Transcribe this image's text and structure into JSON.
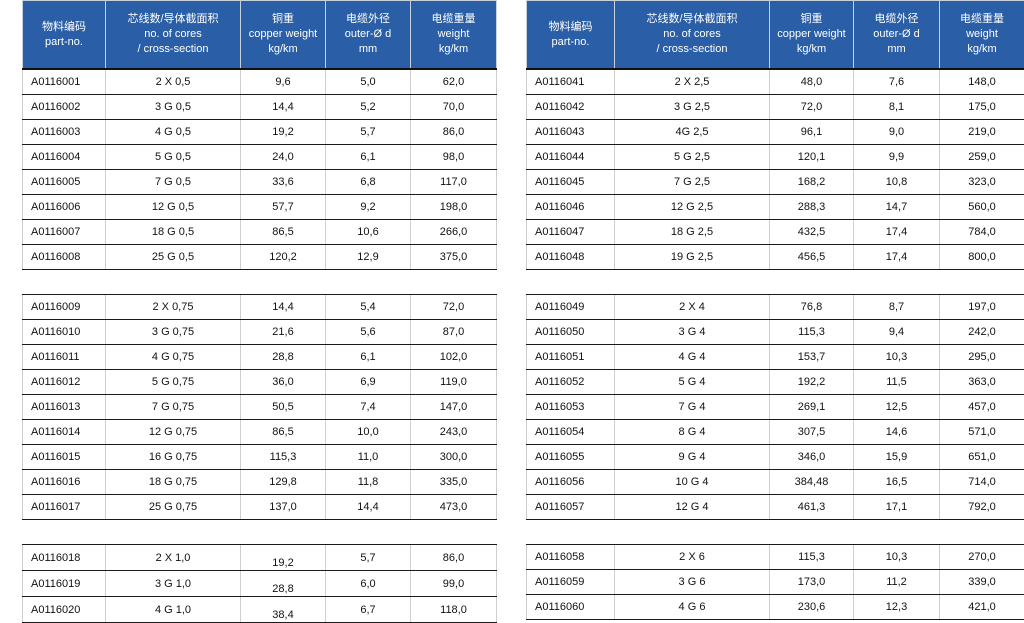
{
  "headers": [
    {
      "cn": "物料编码",
      "en1": "part-no.",
      "en2": ""
    },
    {
      "cn": "芯线数/导体截面积",
      "en1": "no. of cores",
      "en2": "/ cross-section"
    },
    {
      "cn": "铜重",
      "en1": "copper weight",
      "en2": "kg/km"
    },
    {
      "cn": "电缆外径",
      "en1": "outer-Ø d",
      "en2": "mm"
    },
    {
      "cn": "电缆重量",
      "en1": "weight",
      "en2": "kg/km"
    }
  ],
  "left_table": {
    "rows": [
      {
        "part": "A0116001",
        "cores": "2 X 0,5",
        "copper": "9,6",
        "outer": "5,0",
        "weight": "62,0"
      },
      {
        "part": "A0116002",
        "cores": "3 G 0,5",
        "copper": "14,4",
        "outer": "5,2",
        "weight": "70,0"
      },
      {
        "part": "A0116003",
        "cores": "4 G 0,5",
        "copper": "19,2",
        "outer": "5,7",
        "weight": "86,0"
      },
      {
        "part": "A0116004",
        "cores": "5 G 0,5",
        "copper": "24,0",
        "outer": "6,1",
        "weight": "98,0"
      },
      {
        "part": "A0116005",
        "cores": "7 G 0,5",
        "copper": "33,6",
        "outer": "6,8",
        "weight": "117,0"
      },
      {
        "part": "A0116006",
        "cores": "12 G 0,5",
        "copper": "57,7",
        "outer": "9,2",
        "weight": "198,0"
      },
      {
        "part": "A0116007",
        "cores": "18 G 0,5",
        "copper": "86,5",
        "outer": "10,6",
        "weight": "266,0"
      },
      {
        "part": "A0116008",
        "cores": "25 G 0,5",
        "copper": "120,2",
        "outer": "12,9",
        "weight": "375,0"
      },
      {
        "gap": true
      },
      {
        "part": "A0116009",
        "cores": "2 X 0,75",
        "copper": "14,4",
        "outer": "5,4",
        "weight": "72,0"
      },
      {
        "part": "A0116010",
        "cores": "3 G 0,75",
        "copper": "21,6",
        "outer": "5,6",
        "weight": "87,0"
      },
      {
        "part": "A0116011",
        "cores": "4 G 0,75",
        "copper": "28,8",
        "outer": "6,1",
        "weight": "102,0"
      },
      {
        "part": "A0116012",
        "cores": "5 G 0,75",
        "copper": "36,0",
        "outer": "6,9",
        "weight": "119,0"
      },
      {
        "part": "A0116013",
        "cores": "7 G 0,75",
        "copper": "50,5",
        "outer": "7,4",
        "weight": "147,0"
      },
      {
        "part": "A0116014",
        "cores": "12 G 0,75",
        "copper": "86,5",
        "outer": "10,0",
        "weight": "243,0"
      },
      {
        "part": "A0116015",
        "cores": "16 G 0,75",
        "copper": "115,3",
        "outer": "11,0",
        "weight": "300,0"
      },
      {
        "part": "A0116016",
        "cores": "18 G 0,75",
        "copper": "129,8",
        "outer": "11,8",
        "weight": "335,0"
      },
      {
        "part": "A0116017",
        "cores": "25 G 0,75",
        "copper": "137,0",
        "outer": "14,4",
        "weight": "473,0"
      },
      {
        "gap": true
      },
      {
        "part": "A0116018",
        "cores": "2 X 1,0",
        "copper": "19,2",
        "outer": "5,7",
        "weight": "86,0",
        "copper_low": true
      },
      {
        "part": "A0116019",
        "cores": "3 G 1,0",
        "copper": "28,8",
        "outer": "6,0",
        "weight": "99,0",
        "copper_low": true
      },
      {
        "part": "A0116020",
        "cores": "4 G 1,0",
        "copper": "38,4",
        "outer": "6,7",
        "weight": "118,0",
        "copper_low": true
      }
    ]
  },
  "right_table": {
    "rows": [
      {
        "part": "A0116041",
        "cores": "2 X 2,5",
        "copper": "48,0",
        "outer": "7,6",
        "weight": "148,0"
      },
      {
        "part": "A0116042",
        "cores": "3 G 2,5",
        "copper": "72,0",
        "outer": "8,1",
        "weight": "175,0"
      },
      {
        "part": "A0116043",
        "cores": "4G 2,5",
        "copper": "96,1",
        "outer": "9,0",
        "weight": "219,0"
      },
      {
        "part": "A0116044",
        "cores": "5 G 2,5",
        "copper": "120,1",
        "outer": "9,9",
        "weight": "259,0"
      },
      {
        "part": "A0116045",
        "cores": "7 G 2,5",
        "copper": "168,2",
        "outer": "10,8",
        "weight": "323,0"
      },
      {
        "part": "A0116046",
        "cores": "12 G 2,5",
        "copper": "288,3",
        "outer": "14,7",
        "weight": "560,0"
      },
      {
        "part": "A0116047",
        "cores": "18 G 2,5",
        "copper": "432,5",
        "outer": "17,4",
        "weight": "784,0"
      },
      {
        "part": "A0116048",
        "cores": "19 G 2,5",
        "copper": "456,5",
        "outer": "17,4",
        "weight": "800,0"
      },
      {
        "gap": true
      },
      {
        "part": "A0116049",
        "cores": "2 X 4",
        "copper": "76,8",
        "outer": "8,7",
        "weight": "197,0"
      },
      {
        "part": "A0116050",
        "cores": "3 G 4",
        "copper": "115,3",
        "outer": "9,4",
        "weight": "242,0"
      },
      {
        "part": "A0116051",
        "cores": "4 G 4",
        "copper": "153,7",
        "outer": "10,3",
        "weight": "295,0"
      },
      {
        "part": "A0116052",
        "cores": "5 G 4",
        "copper": "192,2",
        "outer": "11,5",
        "weight": "363,0"
      },
      {
        "part": "A0116053",
        "cores": "7 G 4",
        "copper": "269,1",
        "outer": "12,5",
        "weight": "457,0"
      },
      {
        "part": "A0116054",
        "cores": "8 G 4",
        "copper": "307,5",
        "outer": "14,6",
        "weight": "571,0"
      },
      {
        "part": "A0116055",
        "cores": "9 G 4",
        "copper": "346,0",
        "outer": "15,9",
        "weight": "651,0"
      },
      {
        "part": "A0116056",
        "cores": "10 G 4",
        "copper": "384,48",
        "outer": "16,5",
        "weight": "714,0"
      },
      {
        "part": "A0116057",
        "cores": "12 G 4",
        "copper": "461,3",
        "outer": "17,1",
        "weight": "792,0"
      },
      {
        "gap": true
      },
      {
        "part": "A0116058",
        "cores": "2 X 6",
        "copper": "115,3",
        "outer": "10,3",
        "weight": "270,0"
      },
      {
        "part": "A0116059",
        "cores": "3 G 6",
        "copper": "173,0",
        "outer": "11,2",
        "weight": "339,0"
      },
      {
        "part": "A0116060",
        "cores": "4 G 6",
        "copper": "230,6",
        "outer": "12,3",
        "weight": "421,0"
      }
    ]
  }
}
